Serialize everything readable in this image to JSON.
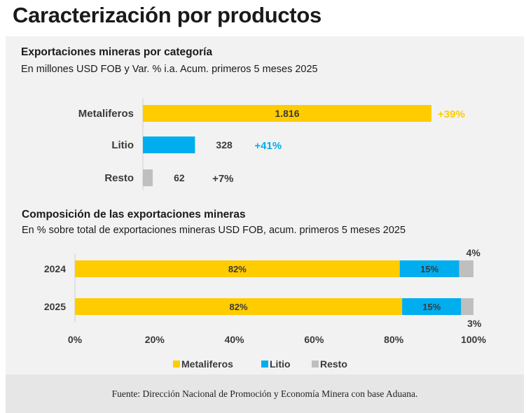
{
  "page": {
    "title": "Caracterización por productos",
    "source": "Fuente: Dirección Nacional de Promoción y Economía Minera con base Aduana."
  },
  "colors": {
    "metaliferos": "#FFCC00",
    "litio": "#00AEEF",
    "resto": "#BFBFBF",
    "panel_bg": "#F2F2F2",
    "footer_bg": "#E6E6E6"
  },
  "chart_data": [
    {
      "type": "bar",
      "orientation": "horizontal",
      "title": "Exportaciones mineras por categoría",
      "subtitle": "En millones USD FOB y Var. % i.a. Acum. primeros 5 meses 2025",
      "categories": [
        "Metaliferos",
        "Litio",
        "Resto"
      ],
      "values": [
        1816,
        328,
        62
      ],
      "value_labels": [
        "1.816",
        "328",
        "62"
      ],
      "change_labels": [
        "+39%",
        "+41%",
        "+7%"
      ],
      "colors": [
        "#FFCC00",
        "#00AEEF",
        "#BFBFBF"
      ]
    },
    {
      "type": "bar",
      "orientation": "horizontal",
      "stacked": true,
      "title": "Composición de las exportaciones mineras",
      "subtitle": "En % sobre total de exportaciones mineras USD FOB, acum. primeros 5 meses 2025",
      "categories": [
        "2024",
        "2025"
      ],
      "series": [
        {
          "name": "Metaliferos",
          "values": [
            81.5,
            82.1
          ],
          "labels": [
            "82%",
            "82%"
          ],
          "color": "#FFCC00"
        },
        {
          "name": "Litio",
          "values": [
            14.9,
            14.8
          ],
          "labels": [
            "15%",
            "15%"
          ],
          "color": "#00AEEF"
        },
        {
          "name": "Resto",
          "values": [
            3.6,
            3.1
          ],
          "labels": [
            "4%",
            "3%"
          ],
          "color": "#BFBFBF"
        }
      ],
      "xlim": [
        0,
        100
      ],
      "xticks": [
        "0%",
        "20%",
        "40%",
        "60%",
        "80%",
        "100%"
      ],
      "legend_position": "bottom"
    }
  ]
}
